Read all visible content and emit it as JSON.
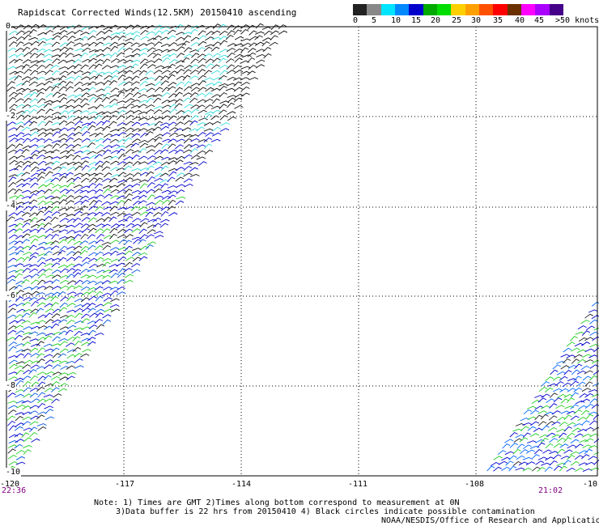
{
  "title": "Rapidscat Corrected Winds(12.5KM) 20150410 ascending",
  "legend": {
    "colors": [
      "#222222",
      "#888888",
      "#00e5ff",
      "#0088ff",
      "#0000cc",
      "#00aa00",
      "#00dd00",
      "#ffd000",
      "#ffa000",
      "#ff5000",
      "#ff0000",
      "#6a3000",
      "#ff00ff",
      "#aa00ff",
      "#440088"
    ],
    "labels": [
      "0",
      "5",
      "10",
      "15",
      "20",
      "25",
      "30",
      "35",
      "40",
      "45",
      ">50 knots"
    ]
  },
  "axes": {
    "x_labels": [
      "-120",
      "-117",
      "-114",
      "-111",
      "-108",
      "-10"
    ],
    "y_labels": [
      "0",
      "-2",
      "-4",
      "-6",
      "-8",
      "-10"
    ]
  },
  "times": {
    "left": "22:36",
    "right": "21:02"
  },
  "notes": [
    "Note: 1) Times are GMT 2)Times along bottom correspond to measurement at 0N",
    "3)Data buffer is 22 hrs from 20150410 4) Black circles indicate possible contamination",
    "NOAA/NESDIS/Office of Research and Applications"
  ]
}
